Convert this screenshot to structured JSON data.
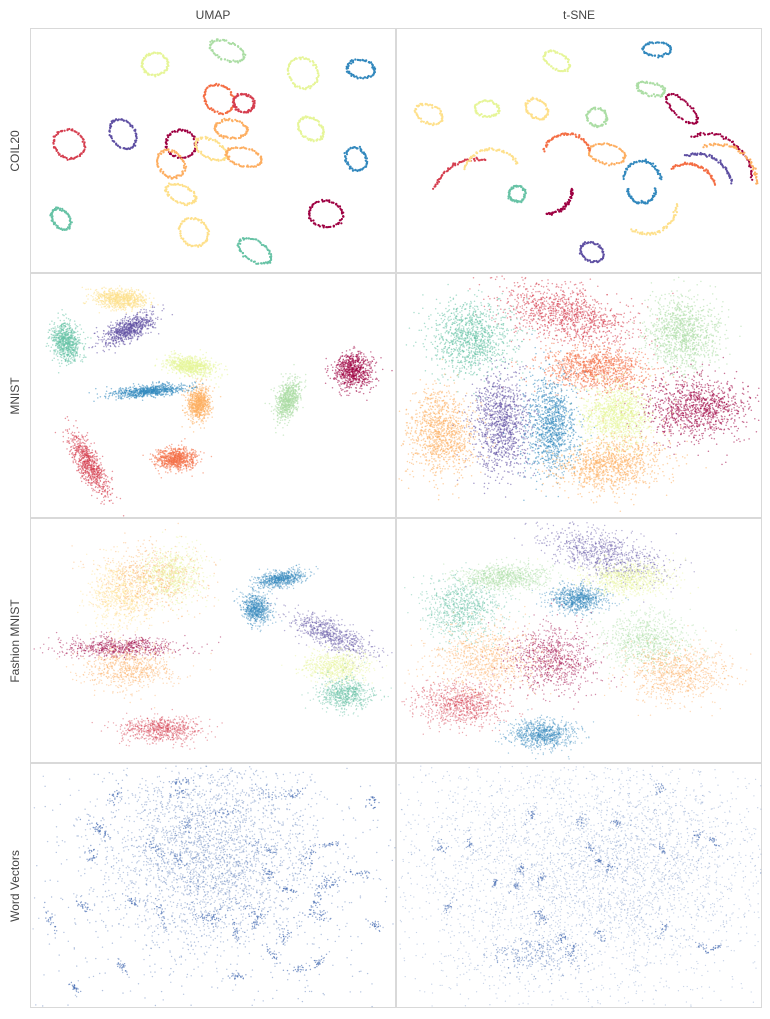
{
  "column_titles": [
    "UMAP",
    "t-SNE"
  ],
  "row_titles": [
    "COIL20",
    "MNIST",
    "Fashion MNIST",
    "Word Vectors"
  ],
  "colors": {
    "palette": [
      "#9e0142",
      "#d53e4f",
      "#f46d43",
      "#fdae61",
      "#fee08b",
      "#e6f598",
      "#abdda4",
      "#66c2a5",
      "#3288bd",
      "#5e4fa2"
    ],
    "word_vectors": "#3b63ad",
    "panel_border": "#d9d9d9"
  },
  "chart_data": {
    "type": "scatter",
    "layout": "grid",
    "grid_rows": 4,
    "grid_columns": 2,
    "axes": "none",
    "grid": false,
    "legend": "none",
    "colormap": "Spectral",
    "panels": [
      {
        "row": "COIL20",
        "column": "UMAP",
        "cluster_shape": "rings",
        "clusters": 20
      },
      {
        "row": "COIL20",
        "column": "t-SNE",
        "cluster_shape": "rings-and-arcs",
        "clusters": 20
      },
      {
        "row": "MNIST",
        "column": "UMAP",
        "cluster_shape": "dense-blobs",
        "clusters": 10
      },
      {
        "row": "MNIST",
        "column": "t-SNE",
        "cluster_shape": "dense-blobs",
        "clusters": 10
      },
      {
        "row": "Fashion MNIST",
        "column": "UMAP",
        "cluster_shape": "diffuse-blobs",
        "clusters": 10
      },
      {
        "row": "Fashion MNIST",
        "column": "t-SNE",
        "cluster_shape": "diffuse-blobs",
        "clusters": 10
      },
      {
        "row": "Word Vectors",
        "column": "UMAP",
        "cluster_shape": "single-color-cloud",
        "clusters": 1
      },
      {
        "row": "Word Vectors",
        "column": "t-SNE",
        "cluster_shape": "single-color-cloud",
        "clusters": 1
      }
    ]
  }
}
